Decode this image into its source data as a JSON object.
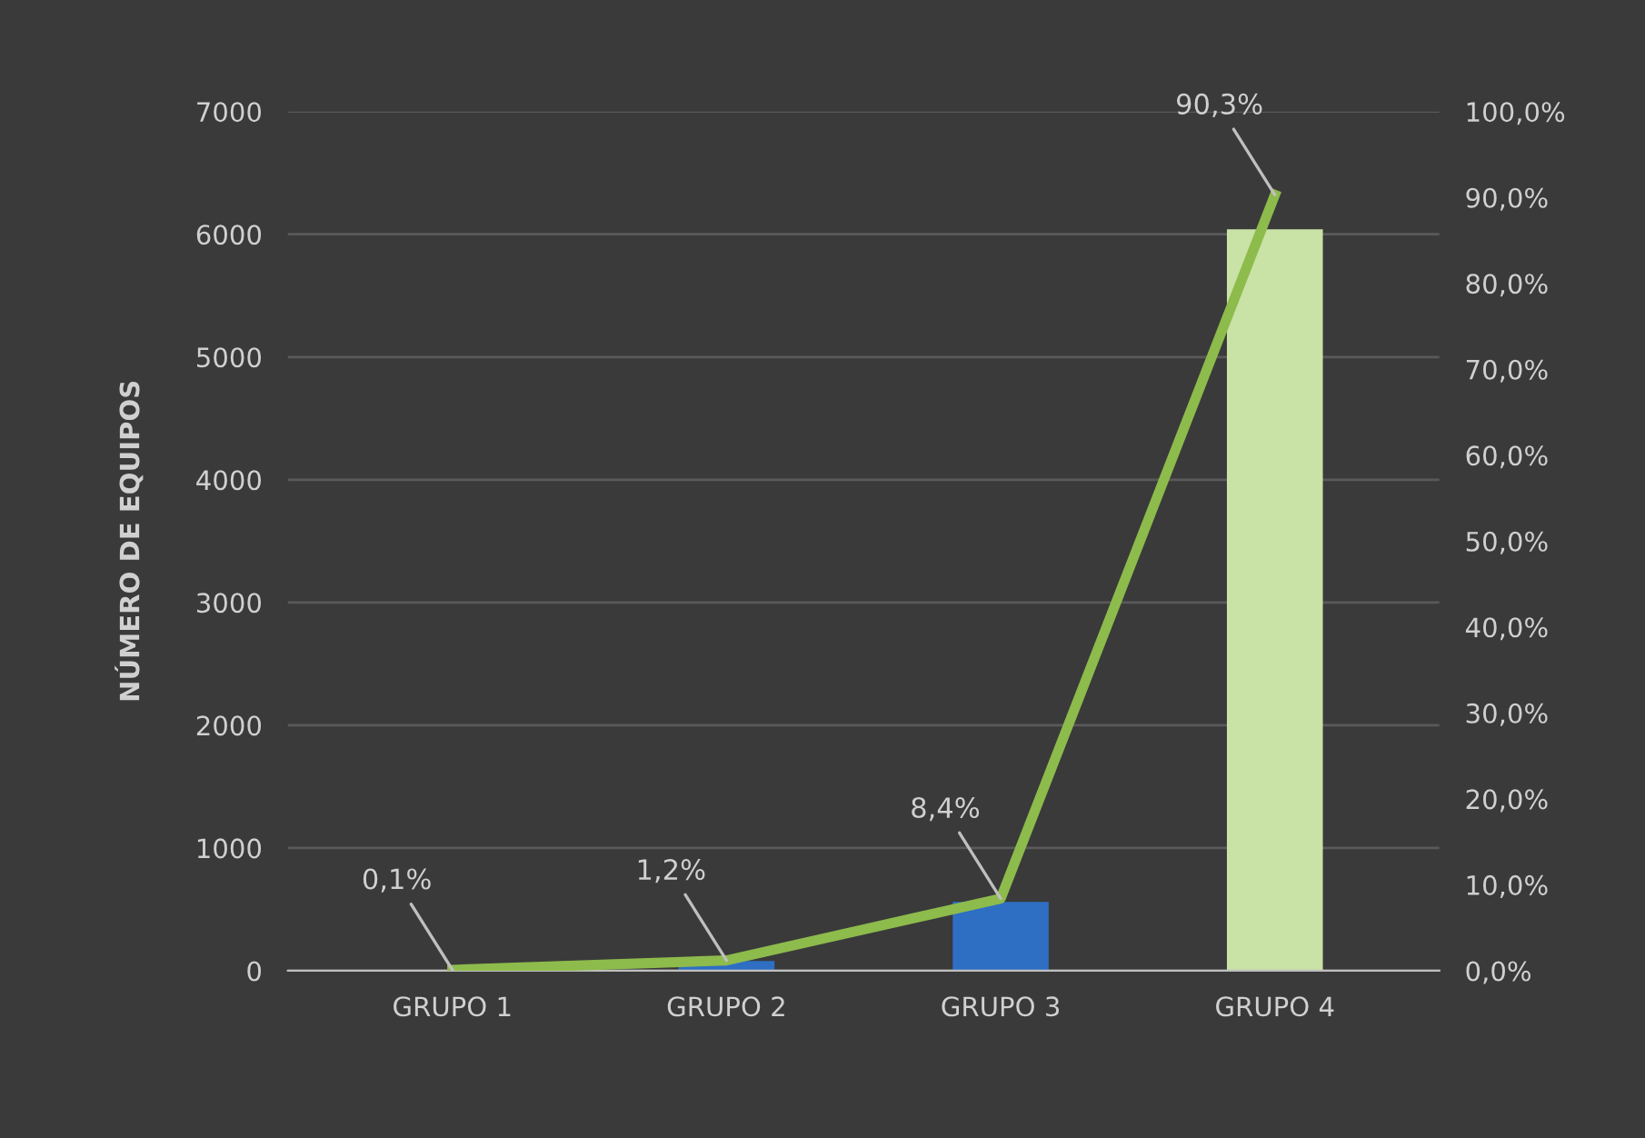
{
  "chart_data": {
    "type": "bar",
    "ylabel": "NÚMERO DE EQUIPOS",
    "categories": [
      "GRUPO 1",
      "GRUPO 2",
      "GRUPO 3",
      "GRUPO 4"
    ],
    "series": [
      {
        "colors": [
          "#2e6fc4",
          "#2e6fc4",
          "#2e6fc4",
          "#c9e2a6"
        ],
        "values": [
          null,
          80,
          560,
          6040
        ]
      },
      {
        "type": "line",
        "axis": "y2",
        "color": "#8dbb4c",
        "values": [
          0.1,
          1.2,
          8.4,
          90.3
        ],
        "value_labels": [
          "0,1%",
          "1,2%",
          "8,4%",
          "90,3%"
        ]
      }
    ],
    "ylim": [
      0,
      7000
    ],
    "yticks": [
      0,
      1000,
      2000,
      3000,
      4000,
      5000,
      6000,
      7000
    ],
    "y2lim": [
      0,
      100
    ],
    "y2ticks": [
      {
        "value": 0,
        "label": "0,0%"
      },
      {
        "value": 10,
        "label": "10,0%"
      },
      {
        "value": 20,
        "label": "20,0%"
      },
      {
        "value": 30,
        "label": "30,0%"
      },
      {
        "value": 40,
        "label": "40,0%"
      },
      {
        "value": 50,
        "label": "50,0%"
      },
      {
        "value": 60,
        "label": "60,0%"
      },
      {
        "value": 70,
        "label": "70,0%"
      },
      {
        "value": 80,
        "label": "80,0%"
      },
      {
        "value": 90,
        "label": "90,0%"
      },
      {
        "value": 100,
        "label": "100,0%"
      }
    ],
    "grid": "y",
    "marker": "none",
    "line_style": "solid"
  }
}
